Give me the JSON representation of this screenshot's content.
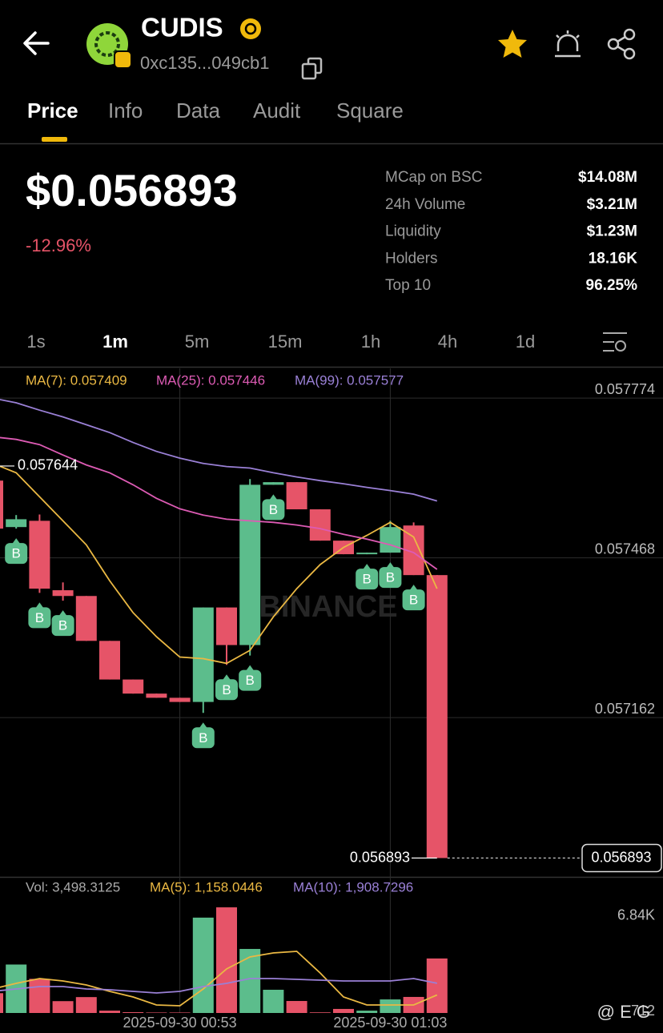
{
  "title": "CUDIS",
  "address": "0xc135...049cb1",
  "tabs": [
    {
      "label": "Price",
      "active": true
    },
    {
      "label": "Info"
    },
    {
      "label": "Data"
    },
    {
      "label": "Audit"
    },
    {
      "label": "Square"
    }
  ],
  "price": "$0.056893",
  "change": "-12.96%",
  "stats": [
    {
      "label": "MCap on BSC",
      "value": "$14.08M"
    },
    {
      "label": "24h Volume",
      "value": "$3.21M"
    },
    {
      "label": "Liquidity",
      "value": "$1.23M"
    },
    {
      "label": "Holders",
      "value": "18.16K"
    },
    {
      "label": "Top 10",
      "value": "96.25%"
    }
  ],
  "intervals": [
    {
      "label": "1s"
    },
    {
      "label": "1m",
      "active": true
    },
    {
      "label": "5m"
    },
    {
      "label": "15m"
    },
    {
      "label": "1h"
    },
    {
      "label": "4h"
    },
    {
      "label": "1d"
    }
  ],
  "watermark": "BINANCE",
  "credit": "@ E G",
  "chart_data": {
    "type": "candlestick",
    "categories": [
      null,
      null,
      null,
      null,
      null,
      null,
      null,
      null,
      "2025-09-30 00:53",
      null,
      null,
      null,
      null,
      null,
      null,
      null,
      null,
      "2025-09-30 01:03",
      null,
      null
    ],
    "open": [
      0.057616,
      0.057527,
      0.057539,
      0.057406,
      0.057395,
      0.057309,
      0.057235,
      0.057208,
      0.0572,
      0.057192,
      0.057373,
      0.057301,
      0.057608,
      0.057613,
      0.057561,
      0.057501,
      0.057475,
      0.057478,
      0.05753,
      0.057435
    ],
    "high": [
      0.057644,
      0.05755,
      0.057551,
      0.057421,
      0.057395,
      0.057309,
      0.057235,
      0.057208,
      0.0572,
      0.057373,
      0.057373,
      0.057619,
      0.057613,
      0.057613,
      0.057561,
      0.057501,
      0.057478,
      0.057539,
      0.057536,
      0.057435
    ],
    "low": [
      0.057524,
      0.057524,
      0.057401,
      0.057386,
      0.057309,
      0.057235,
      0.057208,
      0.0572,
      0.057192,
      0.057171,
      0.057263,
      0.057281,
      0.057608,
      0.057561,
      0.057501,
      0.057475,
      0.057475,
      0.057478,
      0.057435,
      0.056893
    ],
    "close": [
      0.057524,
      0.057542,
      0.057409,
      0.057395,
      0.057309,
      0.057235,
      0.057208,
      0.0572,
      0.057192,
      0.057373,
      0.057301,
      0.057608,
      0.057613,
      0.057561,
      0.057501,
      0.057475,
      0.057478,
      0.057527,
      0.057435,
      0.056893
    ],
    "up_color": "#5cbd8c",
    "down_color": "#e65468",
    "ylim": [
      0.056857,
      0.057831
    ],
    "yticks": [
      0.057774,
      0.057468,
      0.057162
    ],
    "grid": true,
    "indicators": [
      {
        "label": "MA(7): 0.057409",
        "color": "#eab843",
        "values": [
          0.057649,
          0.057631,
          0.057585,
          0.057539,
          0.057493,
          0.057424,
          0.057363,
          0.057317,
          0.057278,
          0.057275,
          0.057266,
          0.057291,
          0.057355,
          0.057409,
          0.057455,
          0.057488,
          0.057511,
          0.057536,
          0.057508,
          0.057409
        ]
      },
      {
        "label": "MA(25): 0.057446",
        "color": "#dd5bb4",
        "values": [
          0.0577,
          0.057695,
          0.057685,
          0.057665,
          0.057646,
          0.057631,
          0.057608,
          0.057582,
          0.057562,
          0.05755,
          0.057542,
          0.057539,
          0.057536,
          0.057531,
          0.057524,
          0.057513,
          0.057504,
          0.057493,
          0.057478,
          0.057446
        ]
      },
      {
        "label": "MA(99): 0.057577",
        "color": "#9a80d6",
        "values": [
          0.057774,
          0.057765,
          0.057751,
          0.057738,
          0.057723,
          0.057708,
          0.057689,
          0.057672,
          0.057659,
          0.057649,
          0.057643,
          0.05764,
          0.057631,
          0.057623,
          0.057616,
          0.05761,
          0.057603,
          0.057597,
          0.05759,
          0.057577
        ]
      }
    ],
    "markers": {
      "label": "B",
      "indices": [
        1,
        2,
        3,
        9,
        10,
        11,
        12,
        16,
        17,
        18
      ]
    },
    "volume": {
      "label": "Vol: 3,498.3125",
      "values": [
        1270,
        3110,
        2190,
        760,
        1020,
        150,
        50,
        30,
        30,
        6120,
        6780,
        4110,
        1490,
        770,
        40,
        260,
        150,
        870,
        1030,
        3498.3125
      ],
      "ylim": [
        0,
        8480
      ],
      "yticks": [
        {
          "value": 6840,
          "label": "6.84K"
        },
        712
      ],
      "indicators": [
        {
          "label": "MA(5): 1,158.0446",
          "color": "#eab843",
          "values": [
            1542,
            1902,
            2210,
            2056,
            1799,
            1388,
            1028,
            514,
            463,
            1542,
            2827,
            3598,
            3855,
            3958,
            2570,
            1028,
            514,
            514,
            514,
            1158.0446
          ]
        },
        {
          "label": "MA(10): 1,908.7296",
          "color": "#9a80d6",
          "values": [
            1388,
            1542,
            1696,
            1696,
            1542,
            1491,
            1388,
            1285,
            1388,
            1696,
            1902,
            2210,
            2210,
            2159,
            2107,
            2056,
            2056,
            2056,
            2210,
            1908.7296
          ]
        }
      ]
    }
  }
}
